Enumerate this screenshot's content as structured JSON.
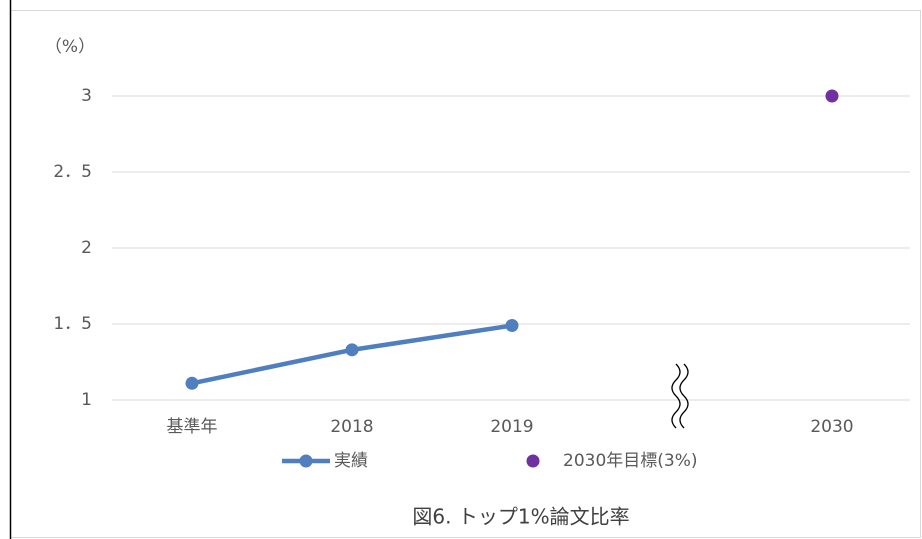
{
  "chart_data": {
    "type": "line",
    "title": "図6. トップ1%論文比率",
    "y_label": "（%）",
    "categories": [
      "基準年",
      "2018",
      "2019",
      null,
      "2030"
    ],
    "series": [
      {
        "name": "実績",
        "color": "#4f7fbe",
        "line": true,
        "values": [
          1.11,
          1.33,
          1.49,
          null,
          null
        ]
      },
      {
        "name": "2030年目標(3%)",
        "color": "#7030a0",
        "line": false,
        "values": [
          null,
          null,
          null,
          null,
          3
        ]
      }
    ],
    "ylim": [
      1,
      3
    ],
    "yticks": [
      1,
      {
        "value": 1.5,
        "label": "1．5"
      },
      2,
      {
        "value": 2.5,
        "label": "2．5"
      },
      3
    ],
    "grid": true,
    "axis_break": true,
    "legend": "bottom"
  }
}
